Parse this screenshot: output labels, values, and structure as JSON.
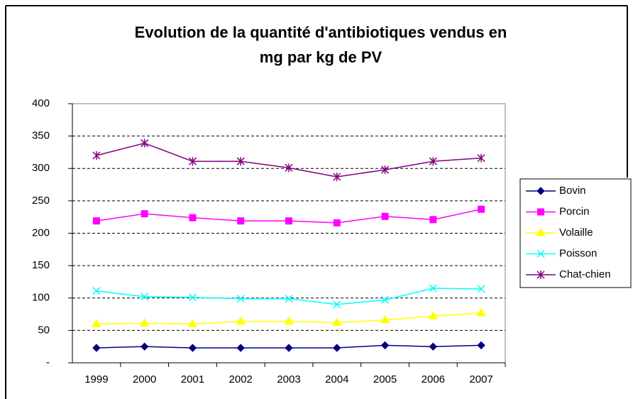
{
  "chart_data": {
    "type": "line",
    "title": [
      "Evolution de la quantité d'antibiotiques vendus en",
      "mg par kg de PV"
    ],
    "categories": [
      "1999",
      "2000",
      "2001",
      "2002",
      "2003",
      "2004",
      "2005",
      "2006",
      "2007"
    ],
    "series": [
      {
        "name": "Bovin",
        "color": "#000080",
        "marker": "diamond",
        "values": [
          23,
          25,
          23,
          23,
          23,
          23,
          27,
          25,
          27
        ]
      },
      {
        "name": "Porcin",
        "color": "#ff00ff",
        "marker": "square",
        "values": [
          219,
          230,
          224,
          219,
          219,
          216,
          226,
          221,
          237
        ]
      },
      {
        "name": "Volaille",
        "color": "#ffff00",
        "marker": "triangle",
        "values": [
          60,
          61,
          60,
          64,
          64,
          62,
          66,
          72,
          77
        ]
      },
      {
        "name": "Poisson",
        "color": "#00ffff",
        "marker": "x",
        "values": [
          111,
          102,
          101,
          99,
          99,
          90,
          97,
          115,
          114
        ]
      },
      {
        "name": "Chat-chien",
        "color": "#800080",
        "marker": "star",
        "values": [
          320,
          339,
          311,
          311,
          301,
          287,
          298,
          311,
          316
        ]
      }
    ],
    "ylim": [
      0,
      400
    ],
    "yticks": [
      {
        "value": 0,
        "label": "-"
      },
      50,
      100,
      150,
      200,
      250,
      300,
      350,
      400
    ],
    "grid": true,
    "legend": "right"
  }
}
